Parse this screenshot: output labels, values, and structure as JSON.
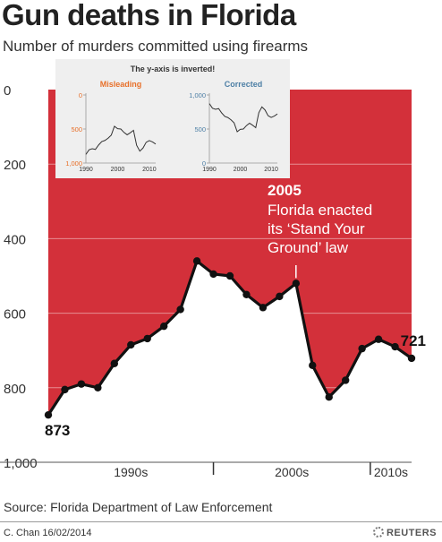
{
  "header": {
    "title": "Gun deaths in Florida",
    "subtitle": "Number of murders committed using firearms"
  },
  "footer": {
    "source": "Source: Florida Department of Law Enforcement",
    "credit": "C. Chan  16/02/2014",
    "brand": "REUTERS"
  },
  "colors": {
    "area": "#d3303a",
    "line": "#111111",
    "inset_misleading": "#e8702a",
    "inset_corrected": "#4d7fa5",
    "panel": "#efefef"
  },
  "chart_data": [
    {
      "type": "area",
      "title": "Gun deaths in Florida",
      "subtitle": "Number of murders committed using firearms",
      "y_inverted": true,
      "ylim": [
        0,
        1000
      ],
      "yticks": [
        "0",
        "200",
        "400",
        "600",
        "800",
        "1,000"
      ],
      "x_range": [
        1990,
        2012
      ],
      "x_groups": [
        {
          "label": "1990s",
          "from": 1990,
          "to": 2000
        },
        {
          "label": "2000s",
          "from": 2000,
          "to": 2009.5
        },
        {
          "label": "2010s",
          "from": 2009.5,
          "to": 2012
        }
      ],
      "grid": true,
      "series": [
        {
          "x": [
            1990,
            1991,
            1992,
            1993,
            1994,
            1995,
            1996,
            1997,
            1998,
            1999,
            2000,
            2001,
            2002,
            2003,
            2004,
            2005,
            2006,
            2007,
            2008,
            2009,
            2010,
            2011,
            2012
          ],
          "values": [
            873,
            805,
            790,
            800,
            735,
            685,
            668,
            635,
            590,
            460,
            495,
            500,
            550,
            585,
            555,
            520,
            740,
            825,
            780,
            695,
            670,
            690,
            721
          ]
        }
      ],
      "labels": [
        {
          "x": 1990,
          "text": "873"
        },
        {
          "x": 2012,
          "text": "721"
        }
      ],
      "annotation": {
        "x": 2005,
        "year": "2005",
        "lines": [
          "Florida enacted",
          "its ‘Stand Your",
          "Ground’ law"
        ]
      }
    },
    {
      "type": "line",
      "title": "Misleading",
      "ylim": [
        0,
        1000
      ],
      "y_inverted": false,
      "yticks": [
        "0",
        "500",
        "1,000"
      ],
      "xticks": [
        "1990",
        "2000",
        "2010"
      ],
      "x": [
        1990,
        1991,
        1992,
        1993,
        1994,
        1995,
        1996,
        1997,
        1998,
        1999,
        2000,
        2001,
        2002,
        2003,
        2004,
        2005,
        2006,
        2007,
        2008,
        2009,
        2010,
        2011,
        2012
      ],
      "values": [
        873,
        805,
        790,
        800,
        735,
        685,
        668,
        635,
        590,
        460,
        495,
        500,
        550,
        585,
        555,
        520,
        740,
        825,
        780,
        695,
        670,
        690,
        721
      ]
    },
    {
      "type": "line",
      "title": "Corrected",
      "ylim": [
        0,
        1000
      ],
      "y_inverted": false,
      "yticks": [
        "0",
        "500",
        "1,000"
      ],
      "xticks": [
        "1990",
        "2000",
        "2010"
      ],
      "x": [
        1990,
        1991,
        1992,
        1993,
        1994,
        1995,
        1996,
        1997,
        1998,
        1999,
        2000,
        2001,
        2002,
        2003,
        2004,
        2005,
        2006,
        2007,
        2008,
        2009,
        2010,
        2011,
        2012
      ],
      "values": [
        873,
        805,
        790,
        800,
        735,
        685,
        668,
        635,
        590,
        460,
        495,
        500,
        550,
        585,
        555,
        520,
        740,
        825,
        780,
        695,
        670,
        690,
        721
      ]
    }
  ],
  "inset_note": "The y-axis is inverted!"
}
